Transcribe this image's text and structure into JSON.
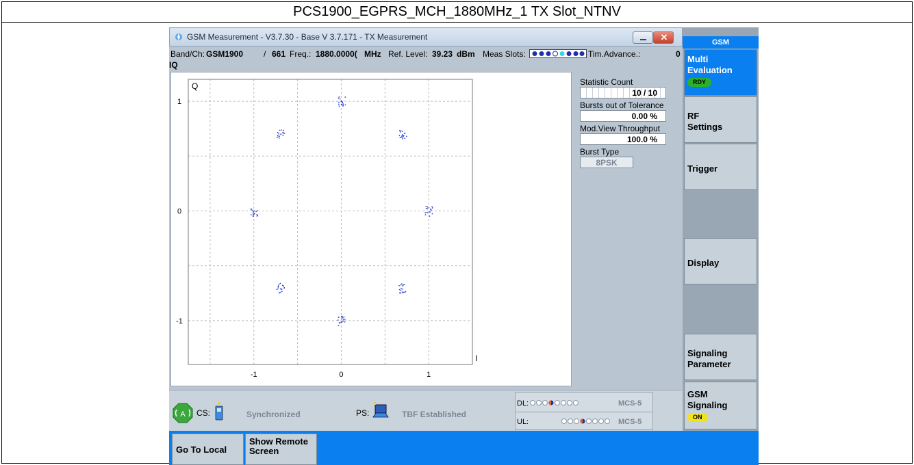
{
  "caption": "PCS1900_EGPRS_MCH_1880MHz_1 TX Slot_NTNV",
  "window": {
    "title": "GSM Measurement  - V3.7.30 - Base V 3.7.171 - TX Measurement"
  },
  "info": {
    "band_label": "Band/Ch:",
    "band_value": "GSM1900",
    "channel_sep": "/",
    "channel_value": "661",
    "freq_label": "Freq.:",
    "freq_value": "1880.0000(",
    "freq_unit": "MHz",
    "ref_label": "Ref. Level:",
    "ref_value": "39.23",
    "ref_unit": "dBm",
    "meas_slots_label": "Meas Slots:",
    "tim_adv_label": "Tim.Advance.:",
    "tim_adv_value": "0"
  },
  "iq_title": "IQ",
  "chart_data": {
    "type": "scatter",
    "xlabel": "I",
    "ylabel": "Q",
    "x_ticks": [
      "-1",
      "0",
      "1"
    ],
    "y_ticks": [
      "1",
      "0",
      "-1"
    ],
    "xlim": [
      -1.75,
      1.5
    ],
    "ylim": [
      -1.4,
      1.2
    ],
    "grid": true,
    "clusters": [
      {
        "x": 0.0,
        "y": 1.0
      },
      {
        "x": 0.7,
        "y": 0.7
      },
      {
        "x": 1.0,
        "y": 0.0
      },
      {
        "x": 0.7,
        "y": -0.7
      },
      {
        "x": 0.0,
        "y": -1.0
      },
      {
        "x": -0.7,
        "y": -0.7
      },
      {
        "x": -1.0,
        "y": 0.0
      },
      {
        "x": -0.7,
        "y": 0.7
      }
    ],
    "point_color": "#2b3fd6"
  },
  "stats": {
    "statistic_count_label": "Statistic Count",
    "statistic_count_value": "10 / 10",
    "bursts_label": "Bursts out of Tolerance",
    "bursts_value": "0.00  %",
    "throughput_label": "Mod.View Throughput",
    "throughput_value": "100.0  %",
    "burst_type_label": "Burst Type",
    "burst_type_value": "8PSK"
  },
  "status": {
    "cs_label": "CS:",
    "cs_state": "Synchronized",
    "ps_label": "PS:",
    "ps_state": "TBF Established",
    "dl_label": "DL:",
    "dl_mcs": "MCS-5",
    "ul_label": "UL:",
    "ul_mcs": "MCS-5"
  },
  "sidebar": {
    "header": "GSM",
    "multi_eval_line1": "Multi",
    "multi_eval_line2": "Evaluation",
    "multi_eval_badge": "RDY",
    "rf_line1": "RF",
    "rf_line2": "Settings",
    "trigger": "Trigger",
    "display": "Display",
    "sig_param_line1": "Signaling",
    "sig_param_line2": "Parameter",
    "gsm_sig_line1": "GSM",
    "gsm_sig_line2": "Signaling",
    "gsm_sig_badge": "ON"
  },
  "bottom": {
    "go_to_local": "Go To Local",
    "show_remote_line1": "Show Remote",
    "show_remote_line2": "Screen"
  },
  "colors": {
    "accent_blue": "#0a7ff0",
    "rdy_green": "#2bb02b",
    "on_yellow": "#f2e21c"
  }
}
